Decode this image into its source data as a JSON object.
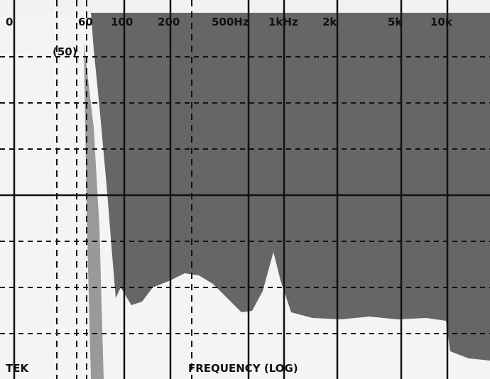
{
  "frequency_labels": [
    "0",
    "60",
    "100",
    "200",
    "500Hz",
    "1kHz",
    "2k",
    "5k",
    "10k"
  ],
  "marker_label": "(50)",
  "brand": "TEK",
  "axis_title": "FREQUENCY (LOG)"
}
